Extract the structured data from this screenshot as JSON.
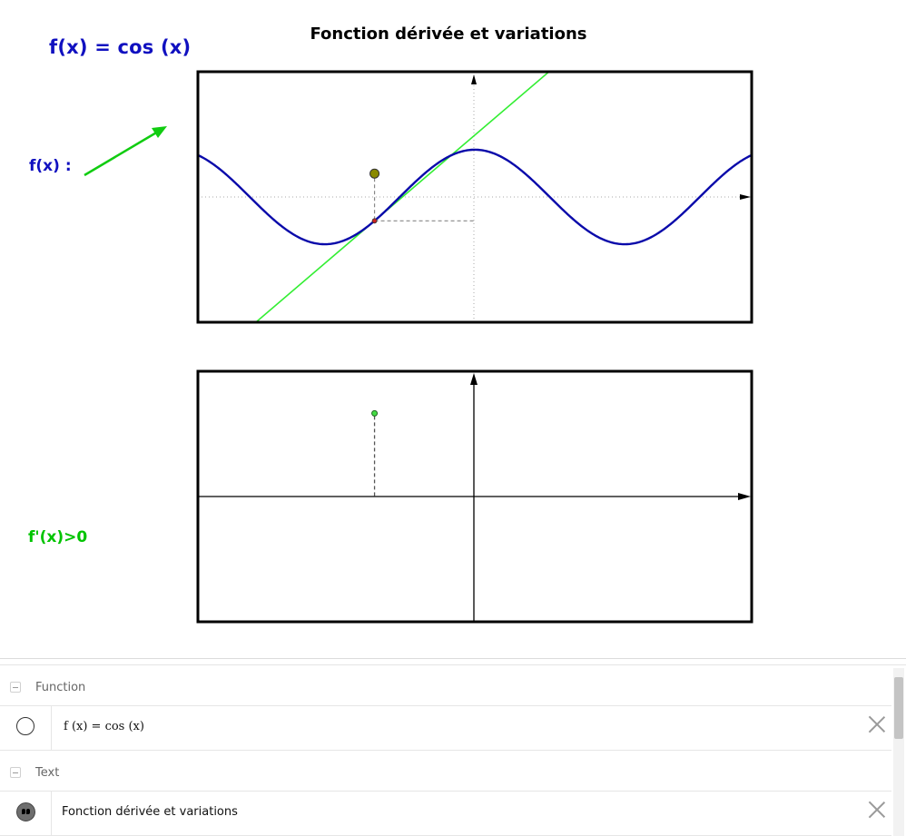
{
  "graphics": {
    "title": "Fonction dérivée et variations",
    "function_text": "f(x) = cos (x)",
    "fx_label": "f(x) :",
    "derivative_label": "f'(x)>0",
    "colors": {
      "curve": "#0a0aaa",
      "tangent": "#33ee33",
      "arrow": "#11cc11",
      "point_big": "#8a8a00",
      "point_derivative": "#44dd44"
    }
  },
  "chart_data": {
    "type": "line",
    "function": "cos(x)",
    "x_range": [
      -5.8,
      5.8
    ],
    "y_range": [
      -2.65,
      2.65
    ],
    "point_x": -2.1,
    "derivative_value": 0.863,
    "second_plot_y_range": [
      -1.3,
      1.3
    ]
  },
  "algebra": {
    "groups": [
      {
        "label": "Function",
        "items": [
          {
            "text": "f (x)  =  cos (x)",
            "icon": "marble-icon"
          }
        ]
      },
      {
        "label": "Text",
        "items": [
          {
            "text": "Fonction dérivée et variations",
            "icon": "quote-icon"
          }
        ]
      }
    ]
  }
}
